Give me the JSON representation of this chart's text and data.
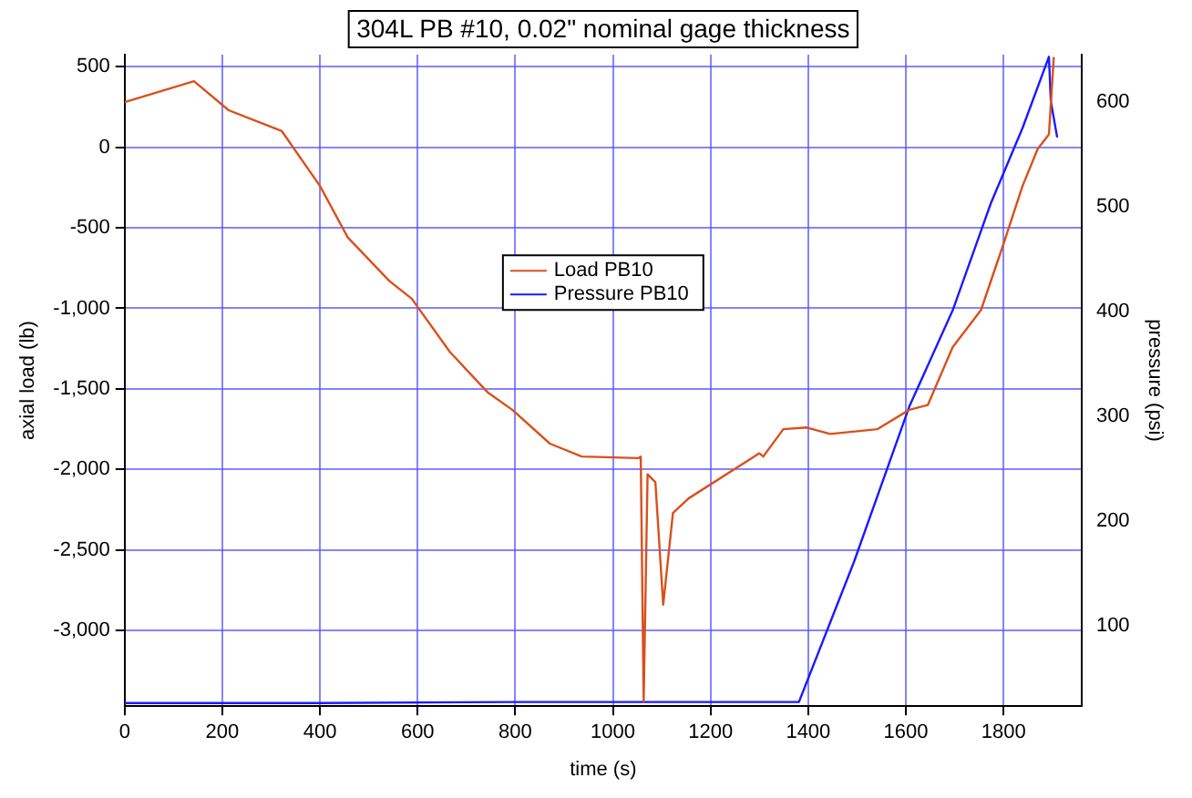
{
  "chart_data": {
    "type": "line",
    "title": "304L PB #10, 0.02\" nominal gage thickness",
    "xlabel": "time (s)",
    "ylabel": "axial load (lb)",
    "y2label": "pressure (psi)",
    "xlim": [
      0,
      1960
    ],
    "xticks": [
      0,
      200,
      400,
      600,
      800,
      1000,
      1200,
      1400,
      1600,
      1800
    ],
    "ylim": [
      -3470,
      575
    ],
    "yticks": [
      {
        "value": 500,
        "label": "500"
      },
      {
        "value": 0,
        "label": "0"
      },
      {
        "value": -500,
        "label": "-500"
      },
      {
        "value": -1000,
        "label": "-1,000"
      },
      {
        "value": -1500,
        "label": "-1,500"
      },
      {
        "value": -2000,
        "label": "-2,000"
      },
      {
        "value": -2500,
        "label": "-2,500"
      },
      {
        "value": -3000,
        "label": "-3,000"
      }
    ],
    "y2lim": [
      23,
      645
    ],
    "y2ticks": [
      100,
      200,
      300,
      400,
      500,
      600
    ],
    "grid": true,
    "legend": "center",
    "line_style": "solid",
    "marker": "none",
    "series": [
      {
        "name": "Load PB10",
        "color": "#d9501c",
        "x": [
          0,
          142,
          213,
          322,
          400,
          457,
          542,
          588,
          666,
          743,
          794,
          871,
          936,
          1052,
          1057,
          1063,
          1071,
          1087,
          1103,
          1123,
          1155,
          1300,
          1308,
          1349,
          1397,
          1445,
          1542,
          1607,
          1645,
          1696,
          1754,
          1800,
          1839,
          1870,
          1893,
          1903
        ],
        "values": [
          280,
          410,
          230,
          100,
          -240,
          -560,
          -830,
          -940,
          -1270,
          -1520,
          -1630,
          -1840,
          -1920,
          -1930,
          -1920,
          -3440,
          -2030,
          -2080,
          -2840,
          -2270,
          -2180,
          -1900,
          -1920,
          -1750,
          -1740,
          -1780,
          -1750,
          -1630,
          -1600,
          -1240,
          -1010,
          -600,
          -240,
          -10,
          80,
          560
        ]
      },
      {
        "name": "Pressure PB10",
        "color": "#1a1aff",
        "axis": "y2",
        "x": [
          0,
          400,
          800,
          1000,
          1200,
          1381,
          1494,
          1607,
          1696,
          1774,
          1839,
          1893,
          1897,
          1910
        ],
        "values": [
          26,
          26,
          27,
          27,
          27,
          27,
          161,
          309,
          401,
          503,
          575,
          643,
          600,
          566
        ]
      }
    ]
  }
}
